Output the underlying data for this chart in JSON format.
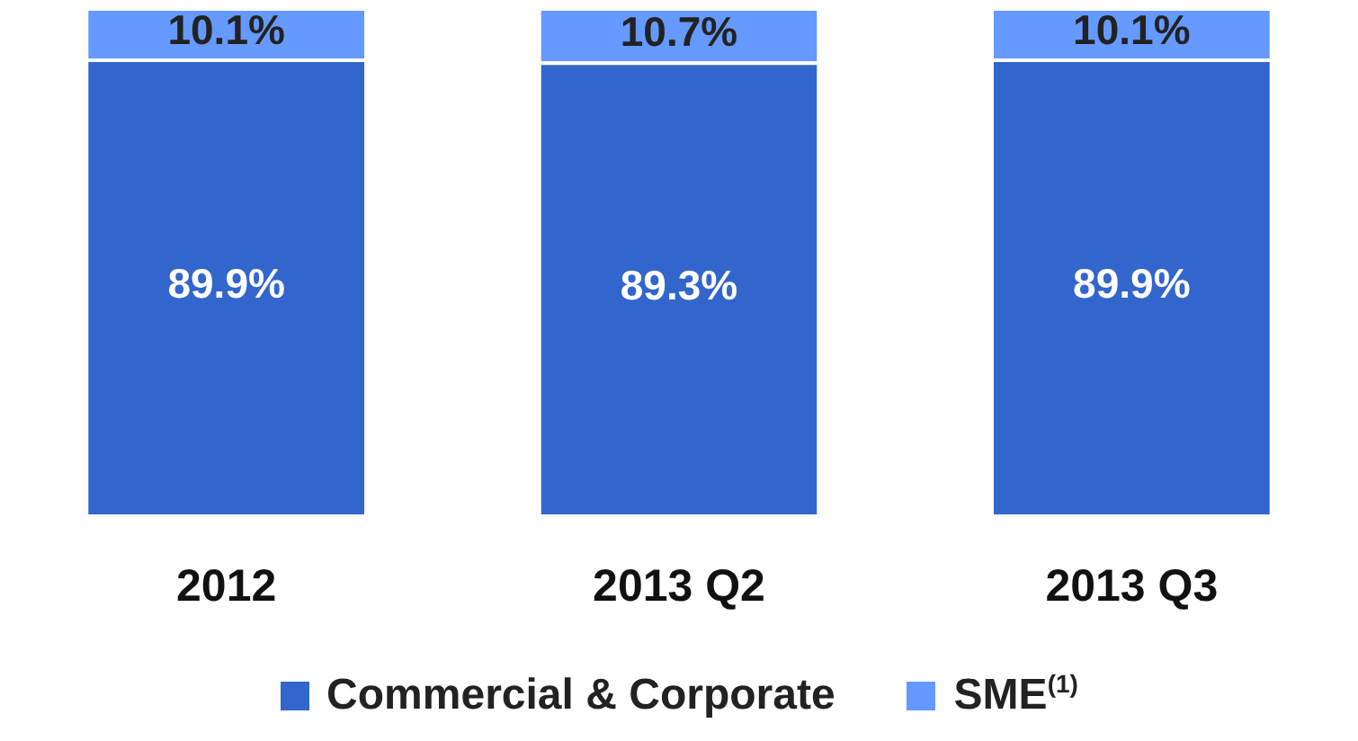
{
  "chart_data": {
    "type": "bar",
    "stacked": true,
    "categories": [
      "2012",
      "2013 Q2",
      "2013 Q3"
    ],
    "series": [
      {
        "name": "Commercial & Corporate",
        "color": "#3366cc",
        "values": [
          89.9,
          89.3,
          89.9
        ],
        "value_labels": [
          "89.9%",
          "89.3%",
          "89.9%"
        ]
      },
      {
        "name": "SME$^{(1)}$",
        "color": "#6699ff",
        "values": [
          10.1,
          10.7,
          10.1
        ],
        "value_labels": [
          "10.1%",
          "10.7%",
          "10.1%"
        ]
      }
    ],
    "legend": "bottom",
    "grid": false
  }
}
